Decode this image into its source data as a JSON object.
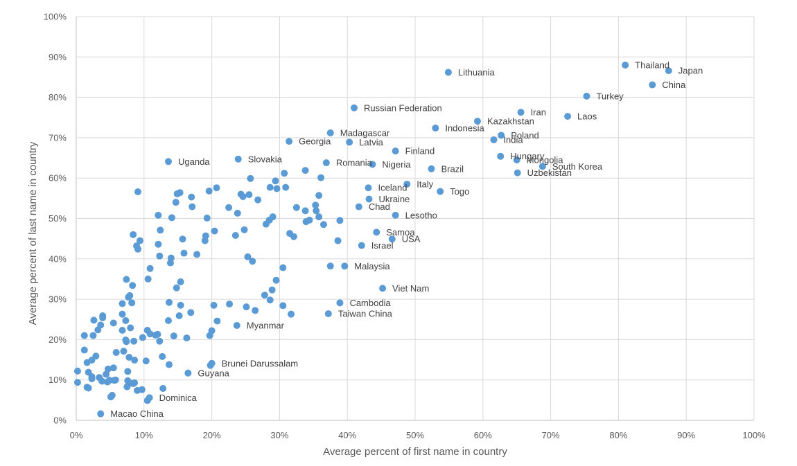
{
  "chart_data": {
    "type": "scatter",
    "xlabel": "Average percent of first name in country",
    "ylabel": "Average percent of last name in country",
    "xlim": [
      0,
      100
    ],
    "ylim": [
      0,
      100
    ],
    "x_ticks": [
      "0%",
      "10%",
      "20%",
      "30%",
      "40%",
      "50%",
      "60%",
      "70%",
      "80%",
      "90%",
      "100%"
    ],
    "y_ticks": [
      "0%",
      "10%",
      "20%",
      "30%",
      "40%",
      "50%",
      "60%",
      "70%",
      "80%",
      "90%",
      "100%"
    ],
    "grid": "vertical and horizontal",
    "legend": "none",
    "marker_color": "#5b9bd5",
    "labeled_points": [
      {
        "label": "Thailand",
        "x": 81.0,
        "y": 88.0
      },
      {
        "label": "Japan",
        "x": 87.4,
        "y": 86.6
      },
      {
        "label": "Lithuania",
        "x": 54.9,
        "y": 86.2
      },
      {
        "label": "China",
        "x": 85.0,
        "y": 83.1
      },
      {
        "label": "Turkey",
        "x": 75.3,
        "y": 80.3
      },
      {
        "label": "Russian Federation",
        "x": 41.0,
        "y": 77.4
      },
      {
        "label": "Iran",
        "x": 65.6,
        "y": 76.3
      },
      {
        "label": "Laos",
        "x": 72.5,
        "y": 75.3
      },
      {
        "label": "Kazakhstan",
        "x": 59.2,
        "y": 74.1
      },
      {
        "label": "Indonesia",
        "x": 53.0,
        "y": 72.4
      },
      {
        "label": "Madagascar",
        "x": 37.5,
        "y": 71.2
      },
      {
        "label": "Poland",
        "x": 62.7,
        "y": 70.6
      },
      {
        "label": "India",
        "x": 61.6,
        "y": 69.5
      },
      {
        "label": "Latvia",
        "x": 40.3,
        "y": 68.9
      },
      {
        "label": "Georgia",
        "x": 31.4,
        "y": 69.1
      },
      {
        "label": "Finland",
        "x": 47.1,
        "y": 66.7
      },
      {
        "label": "Slovakia",
        "x": 23.9,
        "y": 64.7
      },
      {
        "label": "Hungary",
        "x": 62.6,
        "y": 65.4
      },
      {
        "label": "Mongolia",
        "x": 65.0,
        "y": 64.5
      },
      {
        "label": "Uganda",
        "x": 13.6,
        "y": 64.1
      },
      {
        "label": "Romania",
        "x": 36.9,
        "y": 63.8
      },
      {
        "label": "Nigeria",
        "x": 43.7,
        "y": 63.4
      },
      {
        "label": "South Korea",
        "x": 68.8,
        "y": 62.9
      },
      {
        "label": "Brazil",
        "x": 52.4,
        "y": 62.3
      },
      {
        "label": "Uzbekistan",
        "x": 65.1,
        "y": 61.3
      },
      {
        "label": "Italy",
        "x": 48.8,
        "y": 58.5
      },
      {
        "label": "Iceland",
        "x": 43.1,
        "y": 57.6
      },
      {
        "label": "Togo",
        "x": 53.7,
        "y": 56.7
      },
      {
        "label": "Ukraine",
        "x": 43.2,
        "y": 54.8
      },
      {
        "label": "Chad",
        "x": 41.7,
        "y": 52.9
      },
      {
        "label": "Lesotho",
        "x": 47.1,
        "y": 50.8
      },
      {
        "label": "Samoa",
        "x": 44.3,
        "y": 46.6
      },
      {
        "label": "USA",
        "x": 46.6,
        "y": 44.9
      },
      {
        "label": "Israel",
        "x": 42.1,
        "y": 43.3
      },
      {
        "label": "Malaysia",
        "x": 39.6,
        "y": 38.2
      },
      {
        "label": "Viet Nam",
        "x": 45.2,
        "y": 32.7
      },
      {
        "label": "Cambodia",
        "x": 38.9,
        "y": 29.1
      },
      {
        "label": "Taiwan China",
        "x": 37.2,
        "y": 26.4
      },
      {
        "label": "Myanmar",
        "x": 23.7,
        "y": 23.5
      },
      {
        "label": "Brunei Darussalam",
        "x": 20.0,
        "y": 14.1
      },
      {
        "label": "Guyana",
        "x": 16.5,
        "y": 11.7
      },
      {
        "label": "Dominica",
        "x": 10.8,
        "y": 5.6
      },
      {
        "label": "Macao China",
        "x": 3.6,
        "y": 1.6
      }
    ],
    "points": [
      {
        "x": 30.7,
        "y": 61.2
      },
      {
        "x": 33.8,
        "y": 61.9
      },
      {
        "x": 36.1,
        "y": 60.1
      },
      {
        "x": 25.7,
        "y": 59.9
      },
      {
        "x": 29.4,
        "y": 59.3
      },
      {
        "x": 19.6,
        "y": 56.8
      },
      {
        "x": 20.7,
        "y": 57.6
      },
      {
        "x": 28.6,
        "y": 57.7
      },
      {
        "x": 29.6,
        "y": 57.4
      },
      {
        "x": 30.9,
        "y": 57.7
      },
      {
        "x": 9.1,
        "y": 56.6
      },
      {
        "x": 14.9,
        "y": 56.1
      },
      {
        "x": 15.3,
        "y": 56.4
      },
      {
        "x": 24.3,
        "y": 56.0
      },
      {
        "x": 24.6,
        "y": 55.4
      },
      {
        "x": 25.5,
        "y": 55.9
      },
      {
        "x": 35.8,
        "y": 55.7
      },
      {
        "x": 17.0,
        "y": 55.3
      },
      {
        "x": 26.8,
        "y": 54.6
      },
      {
        "x": 14.7,
        "y": 54.0
      },
      {
        "x": 17.1,
        "y": 52.9
      },
      {
        "x": 22.5,
        "y": 52.7
      },
      {
        "x": 32.5,
        "y": 52.7
      },
      {
        "x": 35.3,
        "y": 53.3
      },
      {
        "x": 35.4,
        "y": 51.9
      },
      {
        "x": 33.8,
        "y": 51.9
      },
      {
        "x": 23.8,
        "y": 51.3
      },
      {
        "x": 12.1,
        "y": 50.8
      },
      {
        "x": 14.1,
        "y": 50.2
      },
      {
        "x": 19.3,
        "y": 50.1
      },
      {
        "x": 29.0,
        "y": 50.4
      },
      {
        "x": 28.5,
        "y": 49.6
      },
      {
        "x": 34.4,
        "y": 49.6
      },
      {
        "x": 35.8,
        "y": 50.4
      },
      {
        "x": 33.9,
        "y": 49.2
      },
      {
        "x": 38.9,
        "y": 49.5
      },
      {
        "x": 28.0,
        "y": 48.6
      },
      {
        "x": 36.5,
        "y": 48.5
      },
      {
        "x": 12.4,
        "y": 47.1
      },
      {
        "x": 20.4,
        "y": 46.9
      },
      {
        "x": 24.8,
        "y": 47.2
      },
      {
        "x": 8.4,
        "y": 46.0
      },
      {
        "x": 23.5,
        "y": 45.8
      },
      {
        "x": 31.5,
        "y": 46.3
      },
      {
        "x": 19.1,
        "y": 45.7
      },
      {
        "x": 32.1,
        "y": 45.5
      },
      {
        "x": 9.4,
        "y": 44.5
      },
      {
        "x": 15.7,
        "y": 44.9
      },
      {
        "x": 19.0,
        "y": 44.5
      },
      {
        "x": 38.6,
        "y": 44.5
      },
      {
        "x": 8.9,
        "y": 43.2
      },
      {
        "x": 12.1,
        "y": 43.6
      },
      {
        "x": 9.1,
        "y": 42.4
      },
      {
        "x": 15.9,
        "y": 41.4
      },
      {
        "x": 17.8,
        "y": 41.1
      },
      {
        "x": 12.3,
        "y": 40.7
      },
      {
        "x": 14.0,
        "y": 40.2
      },
      {
        "x": 25.3,
        "y": 40.5
      },
      {
        "x": 13.9,
        "y": 39.0
      },
      {
        "x": 26.0,
        "y": 39.4
      },
      {
        "x": 10.9,
        "y": 37.6
      },
      {
        "x": 30.5,
        "y": 37.8
      },
      {
        "x": 37.5,
        "y": 38.2
      },
      {
        "x": 10.6,
        "y": 35.0
      },
      {
        "x": 7.4,
        "y": 34.9
      },
      {
        "x": 15.4,
        "y": 34.3
      },
      {
        "x": 29.5,
        "y": 34.7
      },
      {
        "x": 8.3,
        "y": 33.4
      },
      {
        "x": 14.8,
        "y": 32.8
      },
      {
        "x": 28.9,
        "y": 32.3
      },
      {
        "x": 7.9,
        "y": 30.9
      },
      {
        "x": 7.7,
        "y": 30.5
      },
      {
        "x": 27.8,
        "y": 31.0
      },
      {
        "x": 6.8,
        "y": 28.9
      },
      {
        "x": 8.2,
        "y": 29.1
      },
      {
        "x": 13.7,
        "y": 29.2
      },
      {
        "x": 15.4,
        "y": 28.5
      },
      {
        "x": 20.3,
        "y": 28.5
      },
      {
        "x": 22.6,
        "y": 28.8
      },
      {
        "x": 25.1,
        "y": 28.1
      },
      {
        "x": 28.6,
        "y": 29.8
      },
      {
        "x": 30.5,
        "y": 28.4
      },
      {
        "x": 26.4,
        "y": 27.2
      },
      {
        "x": 6.8,
        "y": 26.3
      },
      {
        "x": 3.9,
        "y": 25.9
      },
      {
        "x": 3.9,
        "y": 25.4
      },
      {
        "x": 15.2,
        "y": 25.9
      },
      {
        "x": 16.9,
        "y": 26.7
      },
      {
        "x": 31.7,
        "y": 26.3
      },
      {
        "x": 2.6,
        "y": 24.8
      },
      {
        "x": 7.3,
        "y": 24.7
      },
      {
        "x": 13.6,
        "y": 24.7
      },
      {
        "x": 20.8,
        "y": 24.6
      },
      {
        "x": 5.5,
        "y": 24.1
      },
      {
        "x": 3.6,
        "y": 23.6
      },
      {
        "x": 8.0,
        "y": 22.9
      },
      {
        "x": 6.8,
        "y": 22.3
      },
      {
        "x": 3.2,
        "y": 22.4
      },
      {
        "x": 10.5,
        "y": 22.3
      },
      {
        "x": 20.0,
        "y": 22.2
      },
      {
        "x": 1.2,
        "y": 21.0
      },
      {
        "x": 2.5,
        "y": 21.0
      },
      {
        "x": 10.9,
        "y": 21.4
      },
      {
        "x": 11.7,
        "y": 21.1
      },
      {
        "x": 12.0,
        "y": 21.3
      },
      {
        "x": 14.4,
        "y": 20.9
      },
      {
        "x": 19.7,
        "y": 21.0
      },
      {
        "x": 9.8,
        "y": 20.5
      },
      {
        "x": 16.3,
        "y": 20.4
      },
      {
        "x": 7.3,
        "y": 19.9
      },
      {
        "x": 7.4,
        "y": 19.5
      },
      {
        "x": 8.5,
        "y": 19.6
      },
      {
        "x": 12.3,
        "y": 19.6
      },
      {
        "x": 1.2,
        "y": 17.4
      },
      {
        "x": 5.9,
        "y": 16.8
      },
      {
        "x": 7.0,
        "y": 17.1
      },
      {
        "x": 2.9,
        "y": 15.9
      },
      {
        "x": 7.8,
        "y": 15.6
      },
      {
        "x": 12.7,
        "y": 15.8
      },
      {
        "x": 2.3,
        "y": 14.9
      },
      {
        "x": 8.6,
        "y": 14.9
      },
      {
        "x": 10.3,
        "y": 14.7
      },
      {
        "x": 1.6,
        "y": 14.3
      },
      {
        "x": 13.7,
        "y": 13.8
      },
      {
        "x": 19.8,
        "y": 13.6
      },
      {
        "x": 4.7,
        "y": 12.7
      },
      {
        "x": 5.5,
        "y": 13.0
      },
      {
        "x": 0.2,
        "y": 12.2
      },
      {
        "x": 1.8,
        "y": 11.9
      },
      {
        "x": 7.6,
        "y": 12.1
      },
      {
        "x": 4.4,
        "y": 11.4
      },
      {
        "x": 2.3,
        "y": 10.8
      },
      {
        "x": 2.3,
        "y": 10.3
      },
      {
        "x": 3.4,
        "y": 10.6
      },
      {
        "x": 3.8,
        "y": 9.7
      },
      {
        "x": 4.9,
        "y": 9.9
      },
      {
        "x": 4.6,
        "y": 9.5
      },
      {
        "x": 5.6,
        "y": 9.9
      },
      {
        "x": 5.8,
        "y": 10.0
      },
      {
        "x": 7.6,
        "y": 9.8
      },
      {
        "x": 8.0,
        "y": 9.2
      },
      {
        "x": 8.4,
        "y": 9.1
      },
      {
        "x": 8.6,
        "y": 9.3
      },
      {
        "x": 0.2,
        "y": 9.4
      },
      {
        "x": 7.5,
        "y": 8.3
      },
      {
        "x": 1.6,
        "y": 8.2
      },
      {
        "x": 1.8,
        "y": 8.0
      },
      {
        "x": 9.0,
        "y": 7.4
      },
      {
        "x": 9.7,
        "y": 7.6
      },
      {
        "x": 12.8,
        "y": 7.9
      },
      {
        "x": 5.3,
        "y": 6.2
      },
      {
        "x": 5.1,
        "y": 5.8
      },
      {
        "x": 10.5,
        "y": 4.9
      }
    ]
  }
}
